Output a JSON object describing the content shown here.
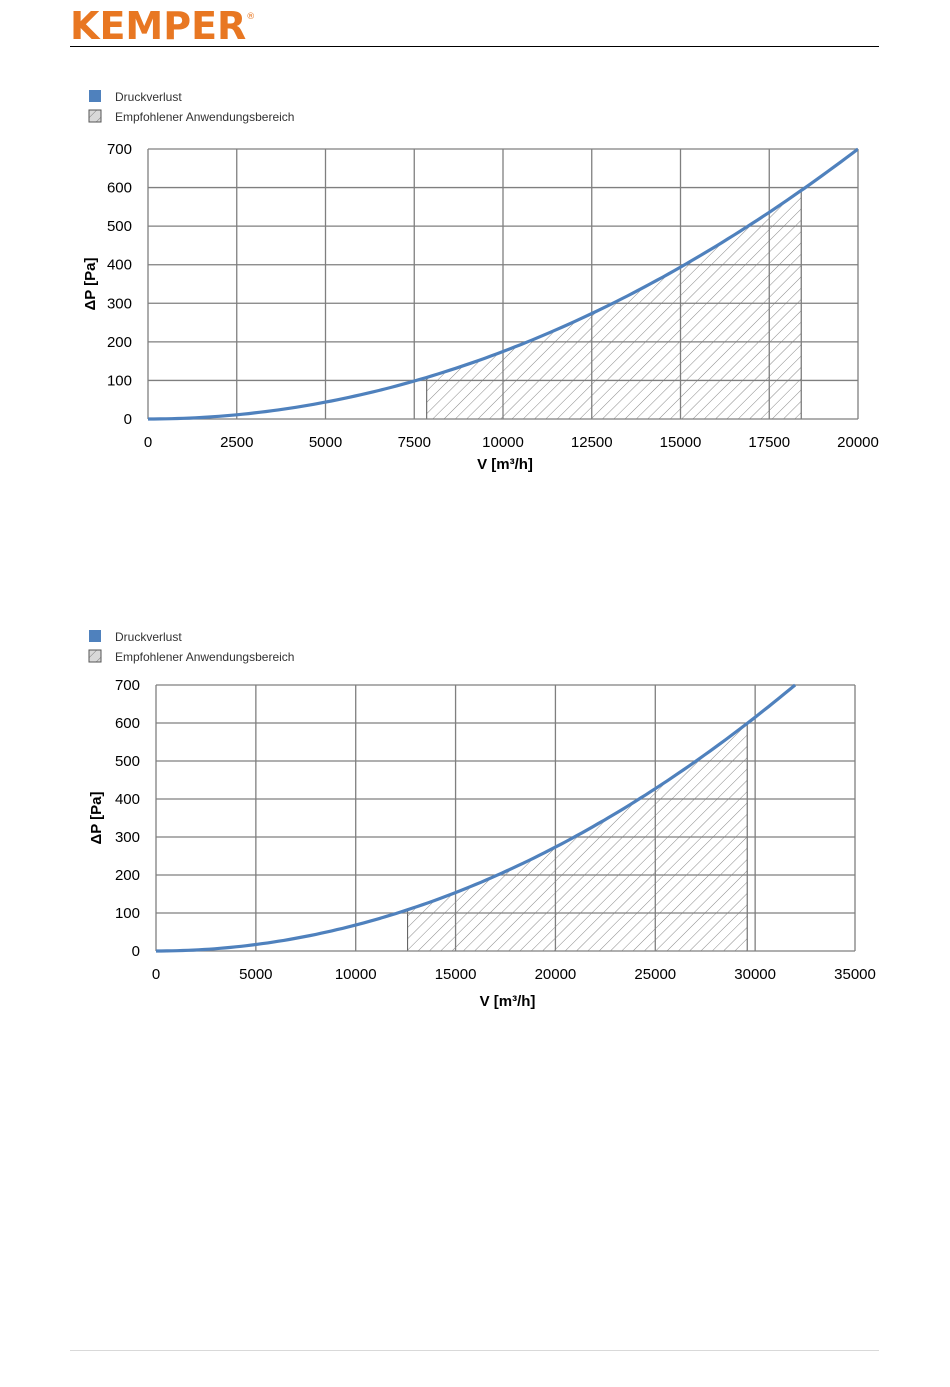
{
  "header": {
    "brand": "KEMPER",
    "registered_mark": "®"
  },
  "colors": {
    "brand": "#e87722",
    "series": "#4f81bd",
    "grid": "#7f7f7f"
  },
  "chart_data": [
    {
      "type": "line",
      "legend": [
        {
          "label": "Druckverlust",
          "swatch": "solid"
        },
        {
          "label": "Empfohlener Anwendungsbereich",
          "swatch": "hatched"
        }
      ],
      "xlabel": "V [m³/h]",
      "ylabel": "ΔP [Pa]",
      "xlim": [
        0,
        20000
      ],
      "ylim": [
        0,
        700
      ],
      "xticks": [
        0,
        2500,
        5000,
        7500,
        10000,
        12500,
        15000,
        17500,
        20000
      ],
      "yticks": [
        0,
        100,
        200,
        300,
        400,
        500,
        600,
        700
      ],
      "series": [
        {
          "name": "Druckverlust",
          "x": [
            0,
            1000,
            2500,
            5000,
            7500,
            10000,
            12500,
            15000,
            17500,
            20000
          ],
          "y": [
            0,
            1.8,
            11,
            44,
            99,
            175,
            273,
            394,
            536,
            700
          ]
        }
      ],
      "recommended_range": {
        "x_from": 7850,
        "x_to": 18400
      },
      "grid": true,
      "legend_position": "top-left"
    },
    {
      "type": "line",
      "legend": [
        {
          "label": "Druckverlust",
          "swatch": "solid"
        },
        {
          "label": "Empfohlener Anwendungsbereich",
          "swatch": "hatched"
        }
      ],
      "xlabel": "V [m³/h]",
      "ylabel": "ΔP [Pa]",
      "xlim": [
        0,
        35000
      ],
      "ylim": [
        0,
        700
      ],
      "xticks": [
        0,
        5000,
        10000,
        15000,
        20000,
        25000,
        30000,
        35000
      ],
      "yticks": [
        0,
        100,
        200,
        300,
        400,
        500,
        600,
        700
      ],
      "series": [
        {
          "name": "Druckverlust",
          "x": [
            0,
            2000,
            5000,
            10000,
            12600,
            15000,
            20000,
            25000,
            29600,
            32000
          ],
          "y": [
            0,
            2.7,
            17,
            66,
            105,
            148,
            263,
            411,
            600,
            700
          ]
        }
      ],
      "recommended_range": {
        "x_from": 12600,
        "x_to": 29600
      },
      "grid": true,
      "legend_position": "top-left"
    }
  ]
}
